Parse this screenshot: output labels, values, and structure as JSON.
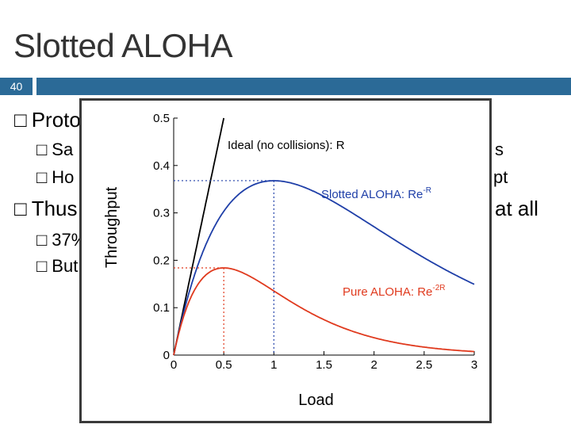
{
  "slide": {
    "title": "Slotted ALOHA",
    "number": "40",
    "bar_color": "#2b6a97",
    "bullets": [
      {
        "glyph": "□",
        "text": "Proto",
        "level": 1
      },
      {
        "glyph": "□",
        "text": "Sa",
        "level": 2
      },
      {
        "glyph": "□",
        "text": "Ho",
        "level": 2
      },
      {
        "glyph": "□",
        "text": "Thus",
        "level": 1
      },
      {
        "glyph": "□",
        "text": "37%",
        "level": 2
      },
      {
        "glyph": "□",
        "text": "But",
        "level": 2
      }
    ],
    "right_fragments": [
      "s",
      "pt",
      "at all"
    ]
  },
  "chart_data": {
    "type": "line",
    "xlabel": "Load",
    "ylabel": "Throughput",
    "xlim": [
      0,
      3
    ],
    "ylim": [
      0,
      0.5
    ],
    "x_ticks": [
      "0",
      "0.5",
      "1",
      "1.5",
      "2",
      "2.5",
      "3"
    ],
    "y_ticks": [
      "0",
      "0.1",
      "0.2",
      "0.3",
      "0.4",
      "0.5"
    ],
    "series": [
      {
        "name": "Ideal (no collisions): R",
        "formula": "R",
        "color": "#000000"
      },
      {
        "name": "Slotted ALOHA: Re^-R",
        "formula": "R*exp(-R)",
        "color": "#1f3fa8",
        "label_main": "Slotted ALOHA: Re",
        "label_sup": "-R"
      },
      {
        "name": "Pure ALOHA: Re^-2R",
        "formula": "R*exp(-2R)",
        "color": "#e03a1e",
        "label_main": "Pure ALOHA: Re",
        "label_sup": "-2R"
      }
    ],
    "annotations": [
      {
        "series": "Slotted ALOHA",
        "peak_x": 1.0,
        "peak_y": 0.368
      },
      {
        "series": "Pure ALOHA",
        "peak_x": 0.5,
        "peak_y": 0.184
      }
    ],
    "grid": false
  }
}
